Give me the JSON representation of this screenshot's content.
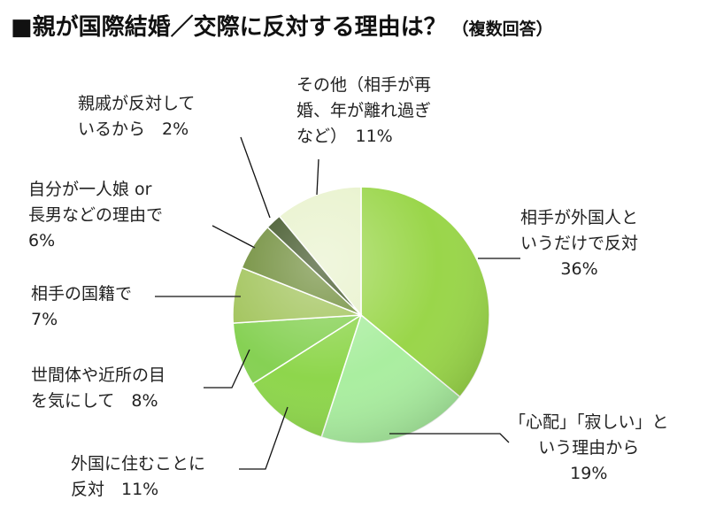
{
  "chart_data": {
    "type": "pie",
    "title": "親が国際結婚／交際に反対する理由は？",
    "title_suffix": "（複数回答）",
    "start_angle_deg": 0,
    "direction": "clockwise",
    "slices": [
      {
        "label_lines": [
          "相手が外国人と",
          "いうだけで反対",
          "36%"
        ],
        "value": 36,
        "color": "#9ad64a"
      },
      {
        "label_lines": [
          "「心配」「寂しい」と",
          "いう理由から",
          "19%"
        ],
        "value": 19,
        "color": "#aaeea0"
      },
      {
        "label_lines": [
          "外国に住むことに",
          "反対　11%"
        ],
        "value": 11,
        "color": "#8ed64c"
      },
      {
        "label_lines": [
          "世間体や近所の目",
          "を気にして　8%"
        ],
        "value": 8,
        "color": "#86d154"
      },
      {
        "label_lines": [
          "相手の国籍で",
          "7%"
        ],
        "value": 7,
        "color": "#a2c45c"
      },
      {
        "label_lines": [
          "自分が一人娘 or",
          "長男などの理由で",
          "6%"
        ],
        "value": 6,
        "color": "#6e8c38"
      },
      {
        "label_lines": [
          "親戚が反対して",
          "いるから　2%"
        ],
        "value": 2,
        "color": "#3a5020"
      },
      {
        "label_lines": [
          "その他（相手が再",
          "婚、年が離れ過ぎ",
          "など）　11%"
        ],
        "value": 11,
        "color": "#e8f2cc"
      }
    ]
  }
}
